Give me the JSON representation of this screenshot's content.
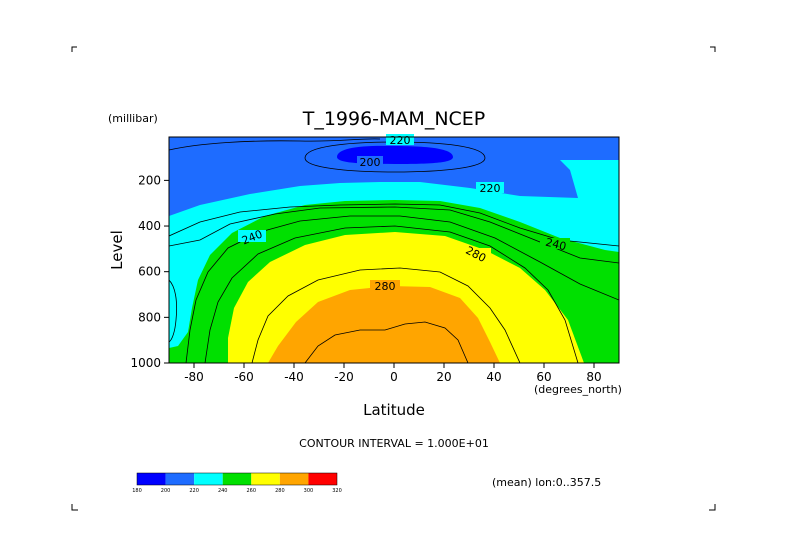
{
  "chart_data": {
    "type": "contour",
    "title": "T_1996-MAM_NCEP",
    "xlabel": "Latitude",
    "x_units": "(degrees_north)",
    "ylabel": "Level",
    "y_units": "(millibar)",
    "xlim": [
      -90,
      90
    ],
    "ylim": [
      1000,
      10
    ],
    "x_ticks": [
      -80,
      -60,
      -40,
      -20,
      0,
      20,
      40,
      60,
      80
    ],
    "y_ticks": [
      200,
      400,
      600,
      800,
      1000
    ],
    "y_inverted": true,
    "contour_interval_text": "CONTOUR INTERVAL = 1.000E+01",
    "averaging_note": "(mean) lon:0..357.5",
    "contour_labels": [
      "220",
      "200",
      "220",
      "240",
      "240",
      "280",
      "280"
    ],
    "colorbar": {
      "levels": [
        "180",
        "200",
        "220",
        "240",
        "260",
        "280",
        "300",
        "320"
      ],
      "colors": [
        "#0000ff",
        "#1e6cff",
        "#00ffff",
        "#00e000",
        "#ffff00",
        "#ffa500",
        "#ff0000"
      ]
    },
    "fill_bands": [
      {
        "range": "<200",
        "color": "#0000ff"
      },
      {
        "range": "200-220",
        "color": "#1e6cff"
      },
      {
        "range": "220-240",
        "color": "#00ffff"
      },
      {
        "range": "240-260",
        "color": "#00e000"
      },
      {
        "range": "260-280",
        "color": "#ffff00"
      },
      {
        "range": "280-300",
        "color": "#ffa500"
      }
    ]
  }
}
